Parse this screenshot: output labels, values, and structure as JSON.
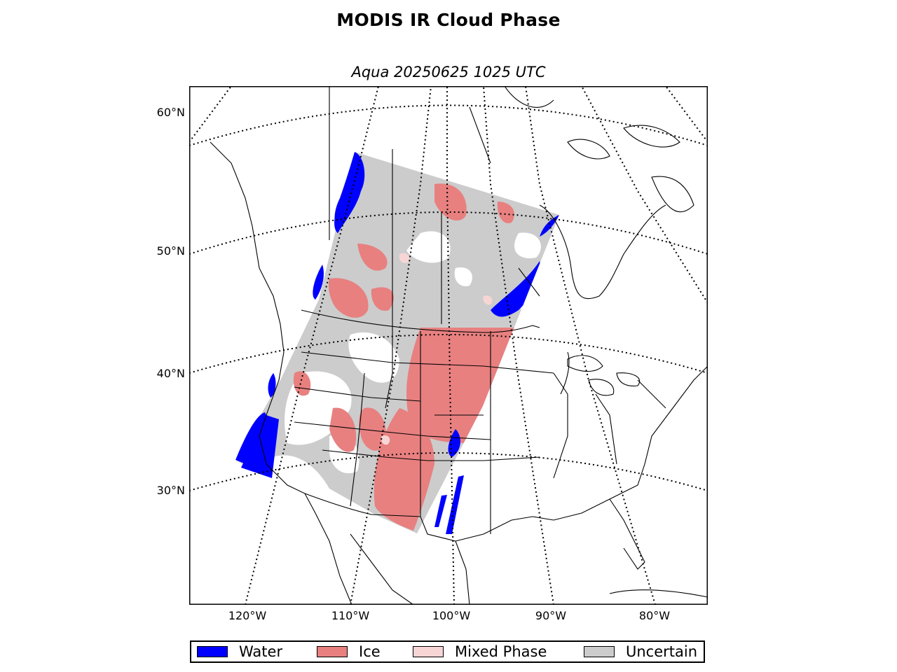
{
  "figure": {
    "title": "MODIS IR Cloud Phase",
    "subtitle": "Aqua 20250625 1025 UTC"
  },
  "map": {
    "projection": "lambert-conformal",
    "lat_labels": [
      "60°N",
      "50°N",
      "40°N",
      "30°N"
    ],
    "lon_labels": [
      "120°W",
      "110°W",
      "100°W",
      "90°W",
      "80°W"
    ],
    "graticule": "dotted"
  },
  "legend": {
    "items": [
      {
        "label": "Water",
        "color": "#0000ff"
      },
      {
        "label": "Ice",
        "color": "#e88080"
      },
      {
        "label": "Mixed Phase",
        "color": "#f8d5d5"
      },
      {
        "label": "Uncertain",
        "color": "#cccccc"
      }
    ]
  },
  "colors": {
    "water": "#0000ff",
    "ice": "#e88080",
    "mixed": "#f8d5d5",
    "uncertain": "#cccccc",
    "clear": "#ffffff"
  }
}
